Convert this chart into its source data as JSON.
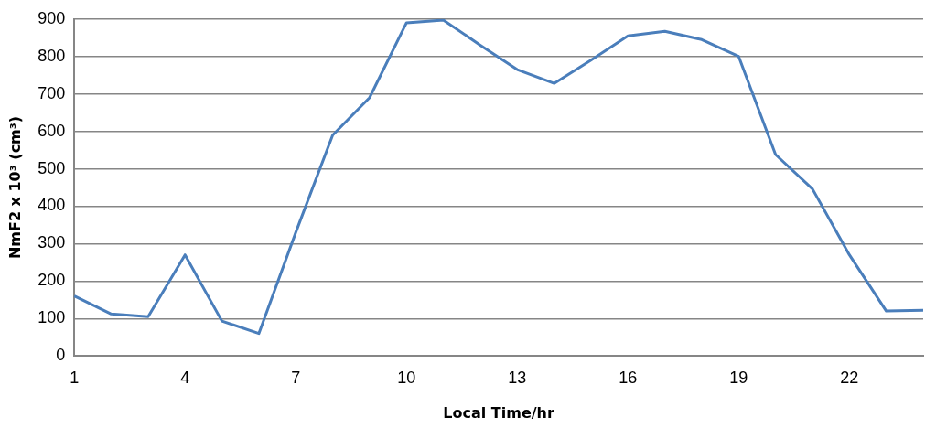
{
  "chart_data": {
    "type": "line",
    "xlabel": "Local Time/hr",
    "ylabel": "NmF2 x 10³ (cm³)",
    "categories": [
      "1",
      null,
      null,
      "4",
      null,
      null,
      "7",
      null,
      null,
      "10",
      null,
      null,
      "13",
      null,
      null,
      "16",
      null,
      null,
      "19",
      null,
      null,
      "22",
      null,
      null
    ],
    "series": [
      {
        "color": "#4a7ebb",
        "values": [
          160,
          112,
          105,
          270,
          93,
          60,
          330,
          590,
          690,
          890,
          897,
          830,
          765,
          728,
          790,
          855,
          867,
          845,
          800,
          538,
          446,
          270,
          120,
          122
        ]
      }
    ],
    "ylim": [
      0,
      900
    ],
    "yticks": [
      0,
      100,
      200,
      300,
      400,
      500,
      600,
      700,
      800,
      900
    ],
    "grid": "y",
    "legend": false,
    "marker": "none",
    "line_style": "solid"
  }
}
